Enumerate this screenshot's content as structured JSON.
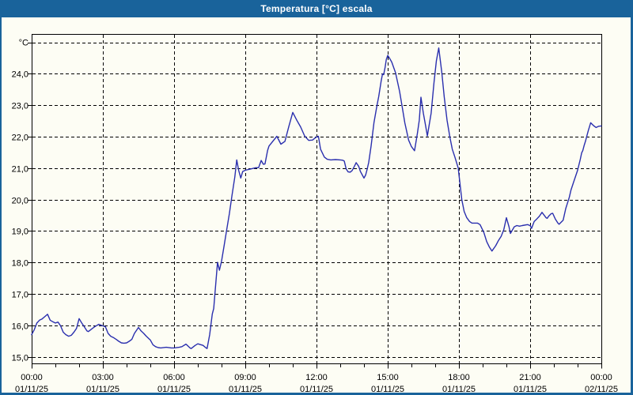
{
  "window": {
    "title": "Temperatura [°C] escala"
  },
  "colors": {
    "titlebar": "#19639b",
    "background": "#fdfdf4",
    "grid": "#000000",
    "axis": "#000000",
    "text": "#000000",
    "title_text": "#ffffff",
    "series": "#2a2fae"
  },
  "chart_data": {
    "type": "line",
    "title": "Temperatura [°C] escala",
    "xlabel": "",
    "ylabel": "°C",
    "grid": true,
    "legend": "none",
    "ylim": [
      15.0,
      25.0
    ],
    "xlim_hours": [
      0,
      24
    ],
    "y_ticks": {
      "values": [
        15,
        16,
        17,
        18,
        19,
        20,
        21,
        22,
        23,
        24,
        25
      ],
      "labels": [
        "15,0",
        "16,0",
        "17,0",
        "18,0",
        "19,0",
        "20,0",
        "21,0",
        "22,0",
        "23,0",
        "24,0",
        ""
      ]
    },
    "x_ticks": [
      {
        "hour": 0,
        "time": "00:00",
        "date": "01/11/25"
      },
      {
        "hour": 3,
        "time": "03:00",
        "date": "01/11/25"
      },
      {
        "hour": 6,
        "time": "06:00",
        "date": "01/11/25"
      },
      {
        "hour": 9,
        "time": "09:00",
        "date": "01/11/25"
      },
      {
        "hour": 12,
        "time": "12:00",
        "date": "01/11/25"
      },
      {
        "hour": 15,
        "time": "15:00",
        "date": "01/11/25"
      },
      {
        "hour": 18,
        "time": "18:00",
        "date": "01/11/25"
      },
      {
        "hour": 21,
        "time": "21:00",
        "date": "01/11/25"
      },
      {
        "hour": 24,
        "time": "00:00",
        "date": "02/11/25"
      }
    ],
    "minor_x_tick_every_hours": 1,
    "series": [
      {
        "name": "Temperatura",
        "units": "°C",
        "points": [
          [
            0,
            15.7
          ],
          [
            0.11,
            15.86
          ],
          [
            0.22,
            16.07
          ],
          [
            0.33,
            16.16
          ],
          [
            0.44,
            16.2
          ],
          [
            0.56,
            16.28
          ],
          [
            0.67,
            16.35
          ],
          [
            0.78,
            16.16
          ],
          [
            0.89,
            16.11
          ],
          [
            1,
            16.07
          ],
          [
            1.11,
            16.1
          ],
          [
            1.22,
            15.98
          ],
          [
            1.33,
            15.78
          ],
          [
            1.44,
            15.7
          ],
          [
            1.56,
            15.65
          ],
          [
            1.67,
            15.68
          ],
          [
            1.78,
            15.78
          ],
          [
            1.89,
            15.9
          ],
          [
            2,
            16.21
          ],
          [
            2.11,
            16.07
          ],
          [
            2.22,
            15.95
          ],
          [
            2.33,
            15.82
          ],
          [
            2.39,
            15.8
          ],
          [
            2.56,
            15.9
          ],
          [
            2.67,
            15.96
          ],
          [
            2.83,
            16.03
          ],
          [
            3,
            15.98
          ],
          [
            3.11,
            15.95
          ],
          [
            3.22,
            15.74
          ],
          [
            3.33,
            15.65
          ],
          [
            3.44,
            15.61
          ],
          [
            3.56,
            15.55
          ],
          [
            3.67,
            15.49
          ],
          [
            3.78,
            15.44
          ],
          [
            3.89,
            15.43
          ],
          [
            4,
            15.44
          ],
          [
            4.11,
            15.49
          ],
          [
            4.22,
            15.55
          ],
          [
            4.33,
            15.74
          ],
          [
            4.5,
            15.93
          ],
          [
            4.61,
            15.82
          ],
          [
            4.72,
            15.74
          ],
          [
            4.83,
            15.65
          ],
          [
            4.94,
            15.57
          ],
          [
            5,
            15.53
          ],
          [
            5.11,
            15.38
          ],
          [
            5.22,
            15.32
          ],
          [
            5.33,
            15.29
          ],
          [
            5.44,
            15.28
          ],
          [
            5.67,
            15.3
          ],
          [
            5.89,
            15.28
          ],
          [
            6,
            15.28
          ],
          [
            6.22,
            15.3
          ],
          [
            6.33,
            15.32
          ],
          [
            6.5,
            15.4
          ],
          [
            6.56,
            15.36
          ],
          [
            6.67,
            15.28
          ],
          [
            6.72,
            15.26
          ],
          [
            6.89,
            15.36
          ],
          [
            7,
            15.41
          ],
          [
            7.22,
            15.36
          ],
          [
            7.33,
            15.29
          ],
          [
            7.39,
            15.26
          ],
          [
            7.5,
            15.7
          ],
          [
            7.61,
            16.36
          ],
          [
            7.67,
            16.53
          ],
          [
            7.78,
            17.54
          ],
          [
            7.83,
            18
          ],
          [
            7.91,
            17.75
          ],
          [
            8,
            18.04
          ],
          [
            8.11,
            18.54
          ],
          [
            8.22,
            19.05
          ],
          [
            8.33,
            19.55
          ],
          [
            8.44,
            20.13
          ],
          [
            8.56,
            20.72
          ],
          [
            8.64,
            21.26
          ],
          [
            8.72,
            20.93
          ],
          [
            8.81,
            20.68
          ],
          [
            8.89,
            20.89
          ],
          [
            9,
            20.93
          ],
          [
            9.22,
            20.97
          ],
          [
            9.44,
            21.01
          ],
          [
            9.56,
            21.01
          ],
          [
            9.67,
            21.24
          ],
          [
            9.76,
            21.12
          ],
          [
            9.83,
            21.13
          ],
          [
            9.94,
            21.56
          ],
          [
            10,
            21.7
          ],
          [
            10.33,
            22.01
          ],
          [
            10.5,
            21.76
          ],
          [
            10.67,
            21.85
          ],
          [
            10.83,
            22.31
          ],
          [
            11,
            22.77
          ],
          [
            11.17,
            22.52
          ],
          [
            11.33,
            22.31
          ],
          [
            11.5,
            22.02
          ],
          [
            11.67,
            21.88
          ],
          [
            11.83,
            21.89
          ],
          [
            12,
            21.99
          ],
          [
            12.08,
            22.01
          ],
          [
            12.17,
            21.6
          ],
          [
            12.33,
            21.35
          ],
          [
            12.45,
            21.28
          ],
          [
            12.6,
            21.26
          ],
          [
            12.8,
            21.27
          ],
          [
            13,
            21.26
          ],
          [
            13.1,
            21.25
          ],
          [
            13.17,
            21.22
          ],
          [
            13.25,
            20.97
          ],
          [
            13.33,
            20.88
          ],
          [
            13.42,
            20.87
          ],
          [
            13.5,
            20.92
          ],
          [
            13.6,
            21.06
          ],
          [
            13.67,
            21.17
          ],
          [
            13.78,
            21.05
          ],
          [
            13.85,
            20.89
          ],
          [
            13.93,
            20.78
          ],
          [
            14,
            20.68
          ],
          [
            14.07,
            20.78
          ],
          [
            14.13,
            20.95
          ],
          [
            14.2,
            21.18
          ],
          [
            14.3,
            21.7
          ],
          [
            14.42,
            22.44
          ],
          [
            14.55,
            23
          ],
          [
            14.62,
            23.27
          ],
          [
            14.72,
            23.75
          ],
          [
            14.78,
            23.99
          ],
          [
            14.83,
            23.97
          ],
          [
            14.89,
            24.2
          ],
          [
            14.94,
            24.45
          ],
          [
            15,
            24.58
          ],
          [
            15.08,
            24.49
          ],
          [
            15.17,
            24.37
          ],
          [
            15.33,
            24.03
          ],
          [
            15.5,
            23.44
          ],
          [
            15.62,
            22.9
          ],
          [
            15.72,
            22.44
          ],
          [
            15.88,
            21.89
          ],
          [
            16,
            21.68
          ],
          [
            16.13,
            21.55
          ],
          [
            16.25,
            22.1
          ],
          [
            16.33,
            22.52
          ],
          [
            16.4,
            23.25
          ],
          [
            16.5,
            22.75
          ],
          [
            16.6,
            22.33
          ],
          [
            16.67,
            22.02
          ],
          [
            16.83,
            22.75
          ],
          [
            16.95,
            23.72
          ],
          [
            17.05,
            24.41
          ],
          [
            17.15,
            24.82
          ],
          [
            17.28,
            24.03
          ],
          [
            17.38,
            23.27
          ],
          [
            17.5,
            22.52
          ],
          [
            17.62,
            21.98
          ],
          [
            17.72,
            21.6
          ],
          [
            17.83,
            21.35
          ],
          [
            17.97,
            21
          ],
          [
            18.12,
            20
          ],
          [
            18.22,
            19.62
          ],
          [
            18.33,
            19.42
          ],
          [
            18.45,
            19.3
          ],
          [
            18.55,
            19.25
          ],
          [
            18.78,
            19.25
          ],
          [
            18.89,
            19.2
          ],
          [
            19.05,
            18.95
          ],
          [
            19.17,
            18.66
          ],
          [
            19.28,
            18.49
          ],
          [
            19.39,
            18.36
          ],
          [
            19.55,
            18.53
          ],
          [
            19.67,
            18.7
          ],
          [
            19.78,
            18.83
          ],
          [
            19.89,
            19.04
          ],
          [
            20,
            19.42
          ],
          [
            20.11,
            19.13
          ],
          [
            20.17,
            18.92
          ],
          [
            20.33,
            19.13
          ],
          [
            20.44,
            19.17
          ],
          [
            20.55,
            19.15
          ],
          [
            20.67,
            19.17
          ],
          [
            20.89,
            19.2
          ],
          [
            21,
            19.17
          ],
          [
            21.06,
            19.08
          ],
          [
            21.17,
            19.3
          ],
          [
            21.28,
            19.38
          ],
          [
            21.39,
            19.47
          ],
          [
            21.5,
            19.59
          ],
          [
            21.67,
            19.42
          ],
          [
            21.72,
            19.4
          ],
          [
            21.78,
            19.47
          ],
          [
            21.89,
            19.55
          ],
          [
            21.95,
            19.56
          ],
          [
            22.06,
            19.38
          ],
          [
            22.17,
            19.25
          ],
          [
            22.22,
            19.21
          ],
          [
            22.39,
            19.34
          ],
          [
            22.5,
            19.71
          ],
          [
            22.65,
            20.07
          ],
          [
            22.72,
            20.3
          ],
          [
            22.83,
            20.55
          ],
          [
            23,
            20.93
          ],
          [
            23.11,
            21.27
          ],
          [
            23.17,
            21.48
          ],
          [
            23.22,
            21.56
          ],
          [
            23.28,
            21.73
          ],
          [
            23.33,
            21.85
          ],
          [
            23.39,
            22.02
          ],
          [
            23.45,
            22.19
          ],
          [
            23.55,
            22.44
          ],
          [
            23.67,
            22.35
          ],
          [
            23.78,
            22.29
          ],
          [
            23.89,
            22.33
          ],
          [
            24,
            22.34
          ]
        ]
      }
    ]
  }
}
